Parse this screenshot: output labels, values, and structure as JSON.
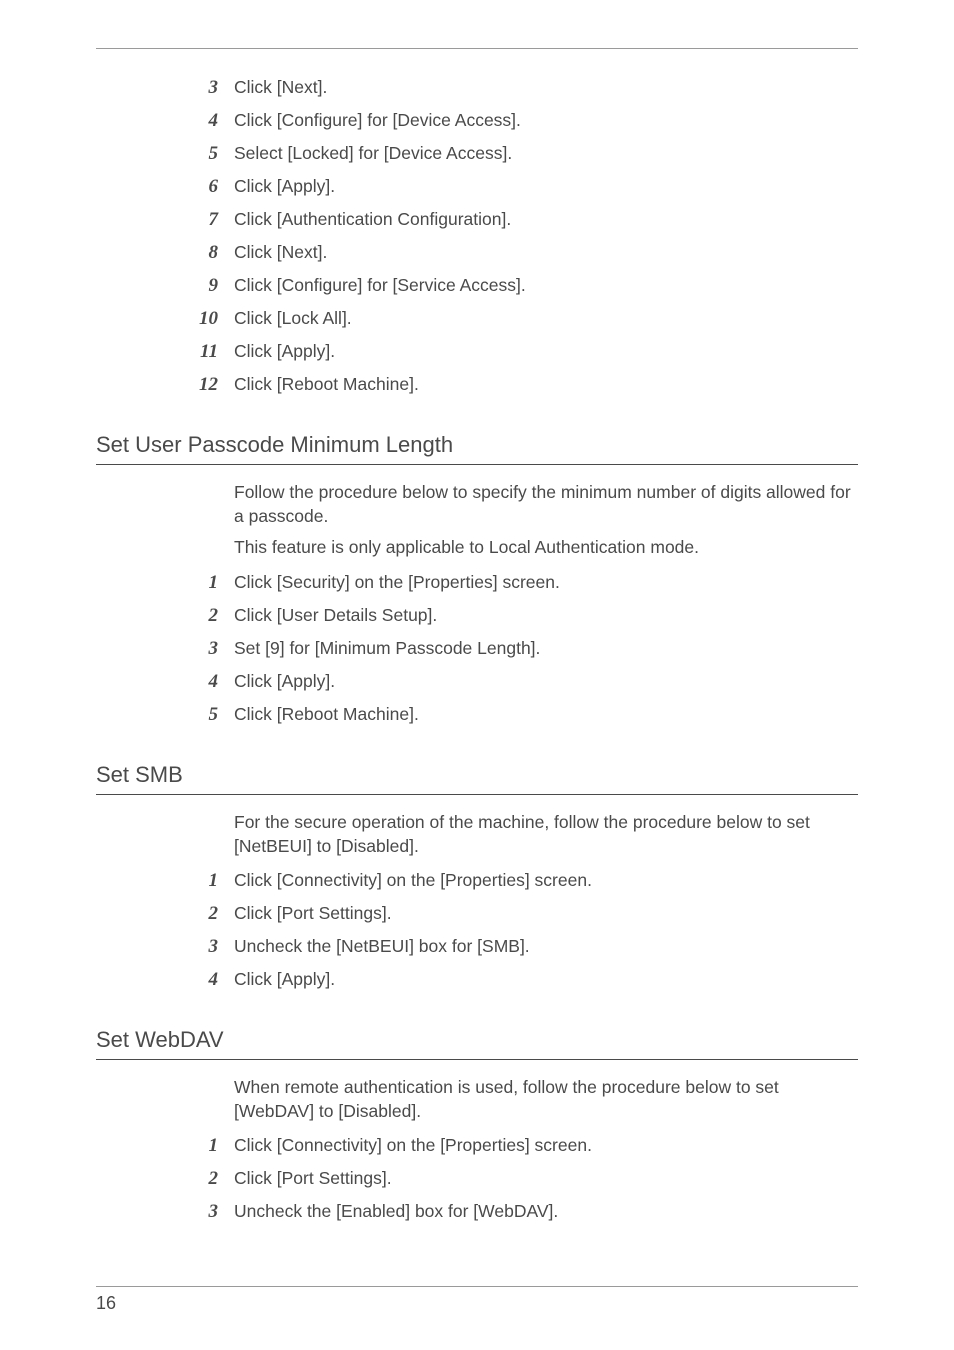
{
  "top_steps": [
    {
      "n": "3",
      "t": "Click [Next]."
    },
    {
      "n": "4",
      "t": "Click [Configure] for [Device Access]."
    },
    {
      "n": "5",
      "t": "Select [Locked] for [Device Access]."
    },
    {
      "n": "6",
      "t": "Click [Apply]."
    },
    {
      "n": "7",
      "t": "Click [Authentication Configuration]."
    },
    {
      "n": "8",
      "t": "Click [Next]."
    },
    {
      "n": "9",
      "t": "Click [Configure] for [Service Access]."
    },
    {
      "n": "10",
      "t": "Click [Lock All]."
    },
    {
      "n": "11",
      "t": "Click [Apply]."
    },
    {
      "n": "12",
      "t": "Click [Reboot Machine]."
    }
  ],
  "sections": {
    "passcode": {
      "title": "Set User Passcode Minimum Length",
      "paras": [
        "Follow the procedure below to specify the minimum number of digits allowed for a passcode.",
        "This feature is only applicable to Local Authentication mode."
      ],
      "steps": [
        {
          "n": "1",
          "t": "Click [Security] on the [Properties] screen."
        },
        {
          "n": "2",
          "t": "Click [User Details Setup]."
        },
        {
          "n": "3",
          "t": "Set [9] for [Minimum Passcode Length]."
        },
        {
          "n": "4",
          "t": "Click [Apply]."
        },
        {
          "n": "5",
          "t": "Click [Reboot Machine]."
        }
      ]
    },
    "smb": {
      "title": "Set SMB",
      "paras": [
        "For the secure operation of the machine, follow the procedure below to set [NetBEUI] to [Disabled]."
      ],
      "steps": [
        {
          "n": "1",
          "t": "Click [Connectivity] on the [Properties] screen."
        },
        {
          "n": "2",
          "t": "Click [Port Settings]."
        },
        {
          "n": "3",
          "t": "Uncheck the [NetBEUI] box for [SMB]."
        },
        {
          "n": "4",
          "t": "Click [Apply]."
        }
      ]
    },
    "webdav": {
      "title": "Set WebDAV",
      "paras": [
        "When remote authentication is used, follow the procedure below to set [WebDAV] to [Disabled]."
      ],
      "steps": [
        {
          "n": "1",
          "t": "Click [Connectivity] on the [Properties] screen."
        },
        {
          "n": "2",
          "t": "Click [Port Settings]."
        },
        {
          "n": "3",
          "t": "Uncheck the [Enabled] box for [WebDAV]."
        }
      ]
    }
  },
  "page_number": "16"
}
